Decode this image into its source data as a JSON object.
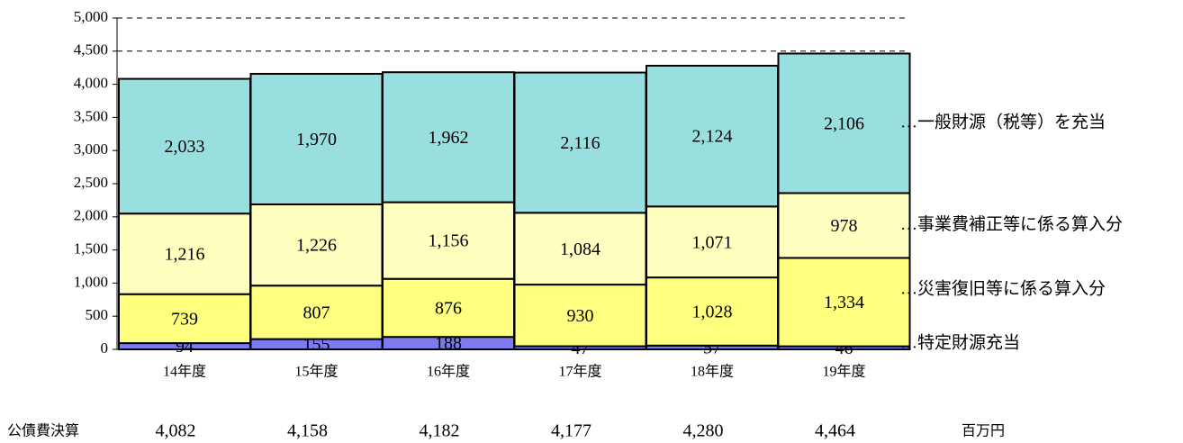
{
  "chart_data": {
    "type": "stacked-bar",
    "categories": [
      "14年度",
      "15年度",
      "16年度",
      "17年度",
      "18年度",
      "19年度"
    ],
    "series": [
      {
        "name": "…特定財源充当",
        "color": "#7b7bef",
        "values": [
          94,
          155,
          188,
          47,
          57,
          46
        ]
      },
      {
        "name": "…災害復旧等に係る算入分",
        "color": "#ffff80",
        "values": [
          739,
          807,
          876,
          930,
          1028,
          1334
        ],
        "value_labels": [
          "739",
          "807",
          "876",
          "930",
          "1,028",
          "1,334"
        ]
      },
      {
        "name": "…事業費補正等に係る算入分",
        "color": "#ffffc0",
        "values": [
          1216,
          1226,
          1156,
          1084,
          1071,
          978
        ],
        "value_labels": [
          "1,216",
          "1,226",
          "1,156",
          "1,084",
          "1,071",
          "978"
        ]
      },
      {
        "name": "…一般財源（税等）を充当",
        "color": "#9adfdf",
        "values": [
          2033,
          1970,
          1962,
          2116,
          2124,
          2106
        ],
        "value_labels": [
          "2,033",
          "1,970",
          "1,962",
          "2,116",
          "2,124",
          "2,106"
        ]
      }
    ],
    "ylim": [
      0,
      5000
    ],
    "yticks": [
      0,
      500,
      {
        "value": 1000,
        "label": "1,000"
      },
      {
        "value": 1500,
        "label": "1,500"
      },
      {
        "value": 2000,
        "label": "2,000"
      },
      {
        "value": 2500,
        "label": "2,500"
      },
      {
        "value": 3000,
        "label": "3,000"
      },
      {
        "value": 3500,
        "label": "3,500"
      },
      {
        "value": 4000,
        "label": "4,000"
      },
      {
        "value": 4500,
        "label": "4,500"
      },
      {
        "value": 5000,
        "label": "5,000"
      }
    ],
    "grid": true,
    "totals": {
      "label": "公債費決算",
      "values": [
        4082,
        4158,
        4182,
        4177,
        4280,
        4464
      ],
      "value_labels": [
        "4,082",
        "4,158",
        "4,182",
        "4,177",
        "4,280",
        "4,464"
      ],
      "unit": "百万円"
    }
  }
}
